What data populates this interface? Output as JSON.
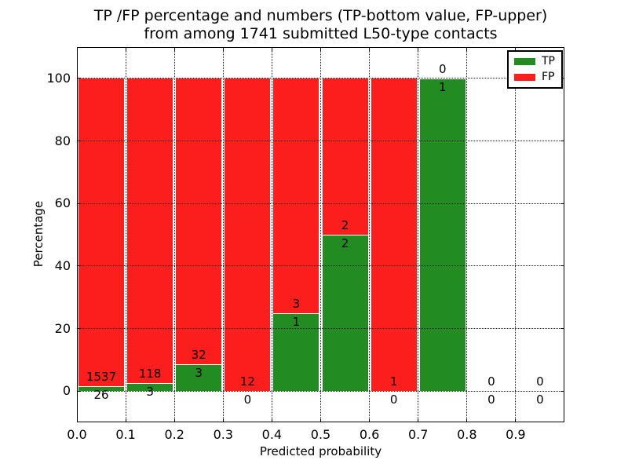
{
  "figure": {
    "title_line1": "TP /FP percentage and numbers (TP-bottom value, FP-upper)",
    "title_line2": "from among 1741 submitted L50-type contacts"
  },
  "legend": {
    "items": [
      {
        "label": "TP",
        "color": "#228b22"
      },
      {
        "label": "FP",
        "color": "#fc1d1d"
      }
    ]
  },
  "chart_data": {
    "type": "bar",
    "stacked": true,
    "title": "TP /FP percentage and numbers (TP-bottom value, FP-upper) from among 1741 submitted L50-type contacts",
    "xlabel": "Predicted probability",
    "ylabel": "Percentage",
    "xlim": [
      0.0,
      1.0
    ],
    "ylim": [
      -10,
      110
    ],
    "grid": true,
    "grid_style": "dotted",
    "legend_position": "upper right",
    "tp_color": "#228b22",
    "fp_color": "#fc1d1d",
    "total_contacts": 1741,
    "xticks": {
      "values": [
        0.0,
        0.1,
        0.2,
        0.3,
        0.4,
        0.5,
        0.6,
        0.7,
        0.8,
        0.9
      ],
      "labels": [
        "0.0",
        "0.1",
        "0.2",
        "0.3",
        "0.4",
        "0.5",
        "0.6",
        "0.7",
        "0.8",
        "0.9"
      ]
    },
    "yticks": {
      "values": [
        0,
        20,
        40,
        60,
        80,
        100
      ],
      "labels": [
        "0",
        "20",
        "40",
        "60",
        "80",
        "100"
      ]
    },
    "bins": [
      {
        "x0": 0.0,
        "x1": 0.1,
        "tp_count": 26,
        "fp_count": 1537,
        "tp_pct": 1.66,
        "fp_pct": 98.34
      },
      {
        "x0": 0.1,
        "x1": 0.2,
        "tp_count": 3,
        "fp_count": 118,
        "tp_pct": 2.48,
        "fp_pct": 97.52
      },
      {
        "x0": 0.2,
        "x1": 0.3,
        "tp_count": 3,
        "fp_count": 32,
        "tp_pct": 8.57,
        "fp_pct": 91.43
      },
      {
        "x0": 0.3,
        "x1": 0.4,
        "tp_count": 0,
        "fp_count": 12,
        "tp_pct": 0,
        "fp_pct": 100
      },
      {
        "x0": 0.4,
        "x1": 0.5,
        "tp_count": 1,
        "fp_count": 3,
        "tp_pct": 25,
        "fp_pct": 75
      },
      {
        "x0": 0.5,
        "x1": 0.6,
        "tp_count": 2,
        "fp_count": 2,
        "tp_pct": 50,
        "fp_pct": 50
      },
      {
        "x0": 0.6,
        "x1": 0.7,
        "tp_count": 0,
        "fp_count": 1,
        "tp_pct": 0,
        "fp_pct": 100
      },
      {
        "x0": 0.7,
        "x1": 0.8,
        "tp_count": 1,
        "fp_count": 0,
        "tp_pct": 100,
        "fp_pct": 0
      },
      {
        "x0": 0.8,
        "x1": 0.9,
        "tp_count": 0,
        "fp_count": 0,
        "tp_pct": 0,
        "fp_pct": 0
      },
      {
        "x0": 0.9,
        "x1": 1.0,
        "tp_count": 0,
        "fp_count": 0,
        "tp_pct": 0,
        "fp_pct": 0
      }
    ]
  }
}
